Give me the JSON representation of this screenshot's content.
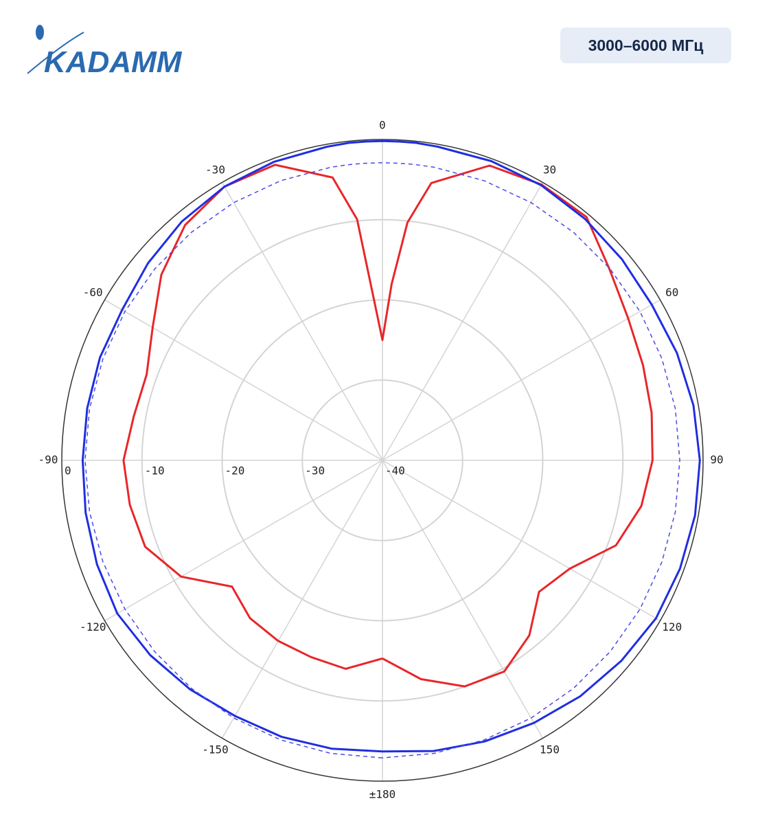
{
  "logo": "KADAMM",
  "badge": "3000–6000 МГц",
  "chart_data": {
    "type": "polar",
    "x": [
      -180,
      -170,
      -160,
      -150,
      -140,
      -130,
      -120,
      -110,
      -100,
      -90,
      -80,
      -70,
      -60,
      -50,
      -40,
      -30,
      -20,
      -10,
      -6,
      -3,
      0,
      3,
      6,
      10,
      20,
      30,
      40,
      50,
      60,
      70,
      80,
      90,
      100,
      110,
      120,
      130,
      140,
      150,
      160,
      170,
      180
    ],
    "series": [
      {
        "color": "#e8262a",
        "style": "solid",
        "values": [
          -15.3,
          -13.6,
          -13.9,
          -14,
          -14.3,
          -15.5,
          -11,
          -8.5,
          -8,
          -7.7,
          -8.5,
          -8.7,
          -6.9,
          -4,
          -1.7,
          -0.6,
          -0.8,
          -4.2,
          -9.8,
          -20,
          -25,
          -18,
          -10.2,
          -4.9,
          -0.9,
          -0.3,
          -0.4,
          -3,
          -4.6,
          -5.4,
          -5.9,
          -6.3,
          -7.2,
          -9,
          -13,
          -14.5,
          -11.5,
          -9.6,
          -10,
          -12.3,
          -15.3
        ]
      },
      {
        "color": "#1f2ee0",
        "style": "solid",
        "values": [
          -3.7,
          -3.5,
          -3.3,
          -3.2,
          -2.7,
          -2.2,
          -1.8,
          -2.1,
          -2.4,
          -2.6,
          -2.6,
          -2.5,
          -2.5,
          -1.8,
          -1.1,
          -0.6,
          -0.4,
          -0.3,
          -0.2,
          -0.2,
          -0.2,
          -0.2,
          -0.2,
          -0.3,
          -0.3,
          -0.4,
          -0.7,
          -1,
          -1.2,
          -0.9,
          -0.6,
          -0.4,
          -0.4,
          -0.5,
          -0.6,
          -1.1,
          -1.6,
          -2.2,
          -2.7,
          -3.2,
          -3.7
        ]
      },
      {
        "color": "#4a4ae6",
        "style": "dashed",
        "values": [
          -2.9,
          -2.9,
          -2.9,
          -2.9,
          -2.9,
          -2.9,
          -2.9,
          -2.9,
          -2.9,
          -2.9,
          -2.9,
          -2.9,
          -2.9,
          -2.9,
          -2.9,
          -2.9,
          -2.9,
          -2.9,
          -2.9,
          -2.9,
          -2.9,
          -2.9,
          -2.9,
          -2.9,
          -2.9,
          -2.9,
          -2.9,
          -2.9,
          -2.9,
          -2.9,
          -2.9,
          -2.9,
          -2.9,
          -2.9,
          -2.9,
          -2.9,
          -2.9,
          -2.9,
          -2.9,
          -2.9,
          -2.9
        ]
      }
    ],
    "rlim": [
      -40,
      0
    ],
    "rticks": [
      -40,
      -30,
      -20,
      -10,
      0
    ],
    "thetaticks": [
      -150,
      -120,
      -90,
      -60,
      -30,
      0,
      30,
      60,
      90,
      120,
      150,
      {
        "value": 180,
        "label": "±180"
      }
    ],
    "grid": true
  }
}
